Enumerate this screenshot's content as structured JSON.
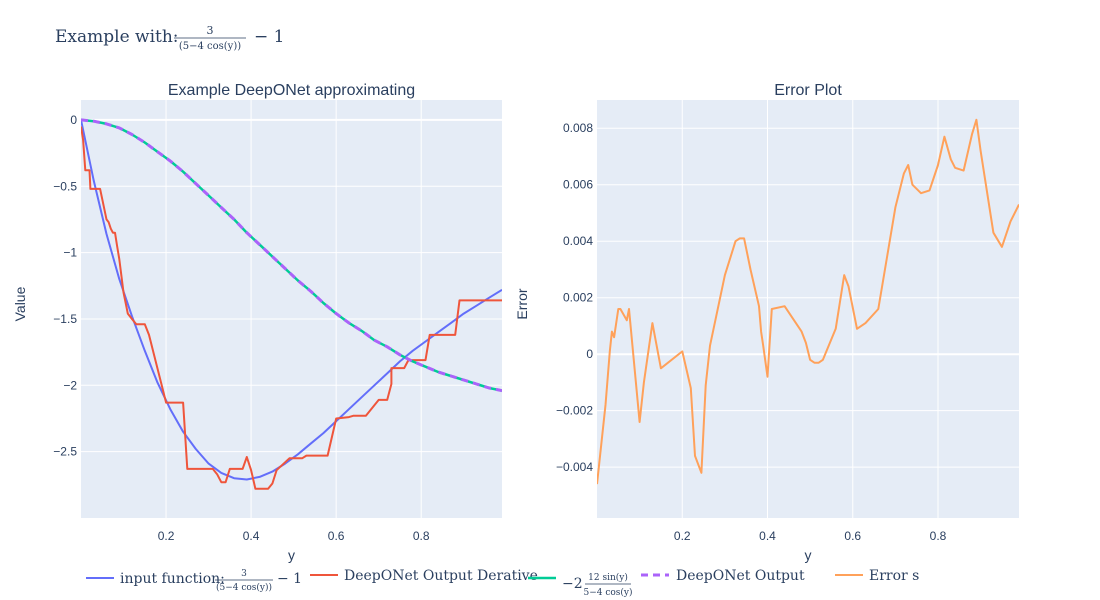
{
  "figure": {
    "title_prefix": "Example with:",
    "title_frac_num": "3",
    "title_frac_den": "(5−4 cos(y))",
    "title_suffix": "− 1"
  },
  "colors": {
    "plot_bg": "#e5ecf6",
    "grid": "#ffffff",
    "text": "#2a3f5f",
    "input": "#636efa",
    "derivative": "#ef553b",
    "analytic": "#00cc96",
    "output": "#ab63fa",
    "error": "#ffa15a"
  },
  "chart_data": [
    {
      "type": "line",
      "title": "Example DeepONet approximating",
      "xlabel": "y",
      "ylabel": "Value",
      "xlim": [
        0.0,
        0.99
      ],
      "ylim": [
        -3.0,
        0.15
      ],
      "x_ticks": [
        0.2,
        0.4,
        0.6,
        0.8
      ],
      "x_tick_labels": [
        "0.2",
        "0.4",
        "0.6",
        "0.8"
      ],
      "y_ticks": [
        0,
        -0.5,
        -1,
        -1.5,
        -2,
        -2.5
      ],
      "y_tick_labels": [
        "0",
        "−0.5",
        "−1",
        "−1.5",
        "−2",
        "−2.5"
      ],
      "grid": true,
      "series": [
        {
          "key": "input",
          "x": [
            0.0,
            0.03,
            0.06,
            0.09,
            0.12,
            0.15,
            0.18,
            0.21,
            0.24,
            0.27,
            0.3,
            0.33,
            0.36,
            0.39,
            0.42,
            0.45,
            0.48,
            0.51,
            0.54,
            0.57,
            0.6,
            0.63,
            0.66,
            0.69,
            0.72,
            0.75,
            0.78,
            0.81,
            0.84,
            0.87,
            0.9,
            0.93,
            0.96,
            0.99
          ],
          "values": [
            0.0,
            -0.46,
            -0.86,
            -1.2,
            -1.48,
            -1.74,
            -1.98,
            -2.18,
            -2.35,
            -2.48,
            -2.59,
            -2.66,
            -2.7,
            -2.71,
            -2.69,
            -2.65,
            -2.59,
            -2.52,
            -2.44,
            -2.36,
            -2.27,
            -2.18,
            -2.09,
            -2.0,
            -1.91,
            -1.82,
            -1.74,
            -1.67,
            -1.6,
            -1.53,
            -1.46,
            -1.4,
            -1.34,
            -1.28
          ]
        },
        {
          "key": "derivative",
          "x": [
            0.0,
            0.005,
            0.01,
            0.02,
            0.022,
            0.04,
            0.045,
            0.06,
            0.065,
            0.07,
            0.075,
            0.08,
            0.085,
            0.09,
            0.1,
            0.11,
            0.12,
            0.13,
            0.14,
            0.15,
            0.16,
            0.2,
            0.21,
            0.24,
            0.25,
            0.255,
            0.3,
            0.31,
            0.32,
            0.33,
            0.34,
            0.35,
            0.36,
            0.38,
            0.39,
            0.4,
            0.41,
            0.44,
            0.45,
            0.46,
            0.49,
            0.5,
            0.52,
            0.53,
            0.58,
            0.6,
            0.6,
            0.63,
            0.64,
            0.67,
            0.7,
            0.72,
            0.73,
            0.73,
            0.74,
            0.76,
            0.77,
            0.81,
            0.82,
            0.83,
            0.88,
            0.89,
            0.9,
            0.95,
            0.96,
            0.99
          ],
          "values": [
            -0.05,
            -0.15,
            -0.38,
            -0.38,
            -0.52,
            -0.52,
            -0.52,
            -0.75,
            -0.77,
            -0.82,
            -0.85,
            -0.85,
            -0.95,
            -1.05,
            -1.3,
            -1.46,
            -1.5,
            -1.54,
            -1.54,
            -1.54,
            -1.62,
            -2.13,
            -2.13,
            -2.13,
            -2.63,
            -2.63,
            -2.63,
            -2.63,
            -2.67,
            -2.73,
            -2.73,
            -2.63,
            -2.63,
            -2.63,
            -2.54,
            -2.64,
            -2.78,
            -2.78,
            -2.74,
            -2.64,
            -2.55,
            -2.55,
            -2.55,
            -2.53,
            -2.53,
            -2.25,
            -2.25,
            -2.24,
            -2.23,
            -2.23,
            -2.11,
            -2.11,
            -1.99,
            -1.87,
            -1.87,
            -1.87,
            -1.81,
            -1.81,
            -1.62,
            -1.62,
            -1.62,
            -1.36,
            -1.36,
            -1.36,
            -1.36,
            -1.36
          ]
        },
        {
          "key": "analytic",
          "x": [
            0.0,
            0.03,
            0.06,
            0.09,
            0.12,
            0.15,
            0.18,
            0.21,
            0.24,
            0.27,
            0.3,
            0.33,
            0.36,
            0.39,
            0.42,
            0.45,
            0.48,
            0.51,
            0.54,
            0.57,
            0.6,
            0.63,
            0.66,
            0.69,
            0.72,
            0.75,
            0.78,
            0.81,
            0.84,
            0.87,
            0.9,
            0.93,
            0.96,
            0.99
          ],
          "values": [
            0.0,
            -0.01,
            -0.03,
            -0.06,
            -0.11,
            -0.17,
            -0.24,
            -0.31,
            -0.39,
            -0.48,
            -0.57,
            -0.66,
            -0.75,
            -0.85,
            -0.94,
            -1.03,
            -1.12,
            -1.21,
            -1.29,
            -1.38,
            -1.46,
            -1.53,
            -1.59,
            -1.66,
            -1.71,
            -1.77,
            -1.82,
            -1.86,
            -1.9,
            -1.93,
            -1.96,
            -1.99,
            -2.02,
            -2.04
          ]
        },
        {
          "key": "output",
          "x": [
            0.0,
            0.03,
            0.06,
            0.09,
            0.12,
            0.15,
            0.18,
            0.21,
            0.24,
            0.27,
            0.3,
            0.33,
            0.36,
            0.39,
            0.42,
            0.45,
            0.48,
            0.51,
            0.54,
            0.57,
            0.6,
            0.63,
            0.66,
            0.69,
            0.72,
            0.75,
            0.78,
            0.81,
            0.84,
            0.87,
            0.9,
            0.93,
            0.96,
            0.99
          ],
          "values": [
            0.0,
            -0.01,
            -0.03,
            -0.06,
            -0.11,
            -0.17,
            -0.24,
            -0.31,
            -0.39,
            -0.48,
            -0.57,
            -0.66,
            -0.75,
            -0.85,
            -0.94,
            -1.03,
            -1.12,
            -1.21,
            -1.29,
            -1.38,
            -1.46,
            -1.53,
            -1.59,
            -1.66,
            -1.71,
            -1.77,
            -1.82,
            -1.86,
            -1.9,
            -1.93,
            -1.96,
            -1.99,
            -2.02,
            -2.04
          ]
        }
      ]
    },
    {
      "type": "line",
      "title": "Error Plot",
      "xlabel": "y",
      "ylabel": "Error",
      "xlim": [
        0.0,
        0.99
      ],
      "ylim": [
        -0.0058,
        0.009
      ],
      "x_ticks": [
        0.2,
        0.4,
        0.6,
        0.8
      ],
      "x_tick_labels": [
        "0.2",
        "0.4",
        "0.6",
        "0.8"
      ],
      "y_ticks": [
        0.008,
        0.006,
        0.004,
        0.002,
        0,
        -0.002,
        -0.004
      ],
      "y_tick_labels": [
        "0.008",
        "0.006",
        "0.004",
        "0.002",
        "0",
        "−0.002",
        "−0.004"
      ],
      "grid": true,
      "series": [
        {
          "key": "error",
          "x": [
            0.0,
            0.02,
            0.03,
            0.035,
            0.04,
            0.05,
            0.055,
            0.07,
            0.075,
            0.1,
            0.11,
            0.13,
            0.15,
            0.2,
            0.22,
            0.23,
            0.245,
            0.255,
            0.265,
            0.3,
            0.325,
            0.335,
            0.345,
            0.36,
            0.38,
            0.385,
            0.39,
            0.4,
            0.41,
            0.44,
            0.48,
            0.49,
            0.5,
            0.51,
            0.52,
            0.53,
            0.56,
            0.58,
            0.59,
            0.61,
            0.63,
            0.66,
            0.7,
            0.72,
            0.73,
            0.74,
            0.76,
            0.78,
            0.8,
            0.815,
            0.83,
            0.84,
            0.86,
            0.88,
            0.89,
            0.9,
            0.93,
            0.95,
            0.97,
            0.99
          ],
          "values": [
            -0.0046,
            -0.0018,
            0.0001,
            0.0008,
            0.0006,
            0.0016,
            0.0016,
            0.0012,
            0.0016,
            -0.0024,
            -0.001,
            0.0011,
            -0.0005,
            0.0001,
            -0.0012,
            -0.0036,
            -0.0042,
            -0.0011,
            0.0003,
            0.0028,
            0.004,
            0.0041,
            0.0041,
            0.003,
            0.0017,
            0.0008,
            0.0003,
            -0.0008,
            0.0016,
            0.0017,
            0.0008,
            0.0004,
            -0.0002,
            -0.0003,
            -0.0003,
            -0.0002,
            0.0009,
            0.0028,
            0.0024,
            0.0009,
            0.0011,
            0.0016,
            0.0052,
            0.0064,
            0.0067,
            0.006,
            0.0057,
            0.0058,
            0.0067,
            0.0077,
            0.0069,
            0.0066,
            0.0065,
            0.0078,
            0.0083,
            0.0072,
            0.0043,
            0.0038,
            0.0047,
            0.0053
          ]
        }
      ]
    }
  ],
  "legend": {
    "placement": "bottom",
    "items": [
      {
        "key": "input",
        "label": "input function:",
        "frac_num": "3",
        "frac_den": "(5−4 cos(y))",
        "suffix": "− 1",
        "dash": false
      },
      {
        "key": "derivative",
        "label": "DeepONet Output Derative",
        "dash": false
      },
      {
        "key": "analytic",
        "label": "−2",
        "frac_num": "12 sin(y)",
        "frac_den": "5−4 cos(y)",
        "dash": false
      },
      {
        "key": "output",
        "label": "DeepONet Output",
        "dash": true
      },
      {
        "key": "error",
        "label": "Error s",
        "dash": false
      }
    ]
  }
}
